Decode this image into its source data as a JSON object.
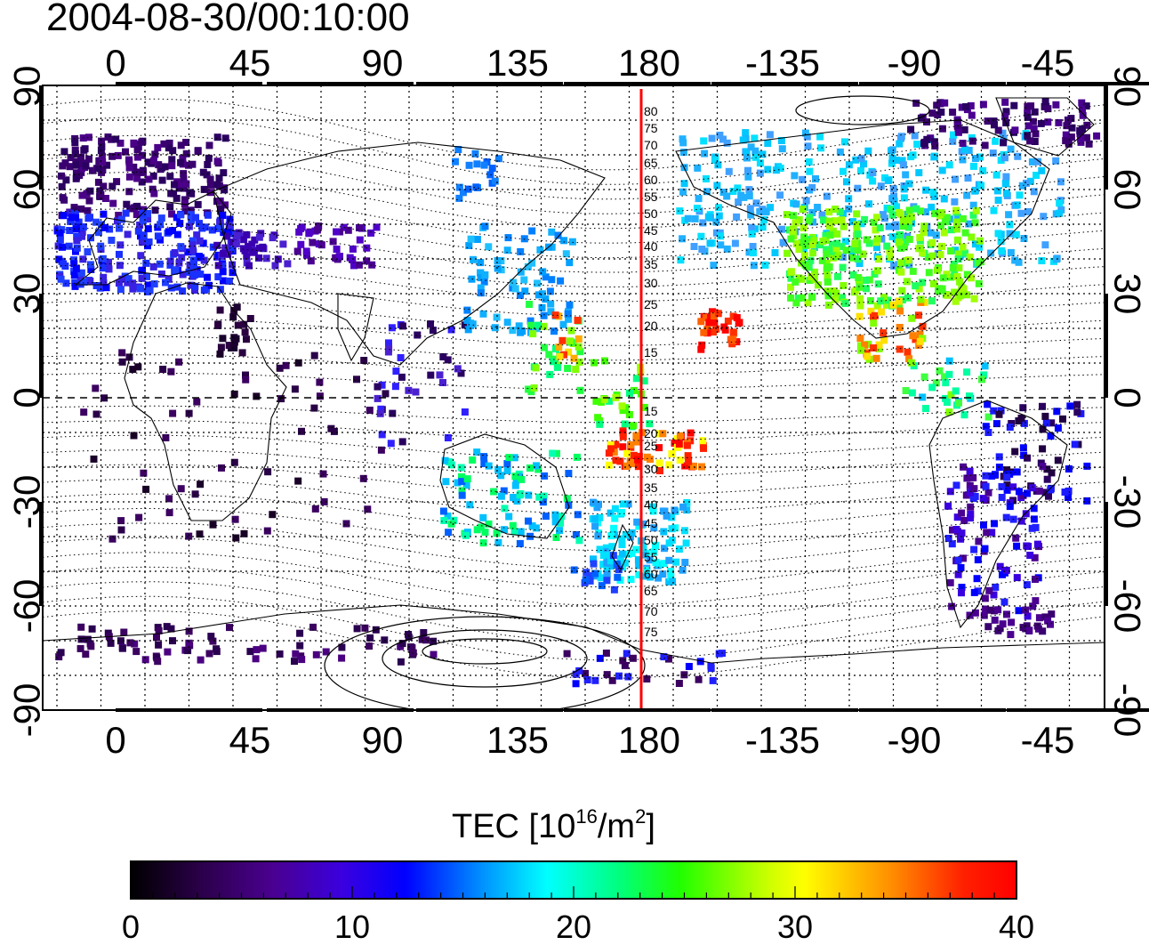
{
  "title": "2004-08-30/00:10:00",
  "lon_ticks": [
    "0",
    "45",
    "90",
    "135",
    "180",
    "-135",
    "-90",
    "-45"
  ],
  "lat_ticks": [
    "90",
    "60",
    "30",
    "0",
    "-30",
    "-60",
    "-90"
  ],
  "mlat_labels_north": [
    "80",
    "75",
    "70",
    "65",
    "60",
    "55",
    "50",
    "45",
    "40",
    "35",
    "30",
    "25",
    "20",
    "15"
  ],
  "mlat_labels_south": [
    "15",
    "20",
    "25",
    "30",
    "35",
    "40",
    "45",
    "50",
    "55",
    "60",
    "65",
    "70",
    "75"
  ],
  "colorbar": {
    "title_prefix": "TEC  [10",
    "title_exp1": "16",
    "title_mid": "/m",
    "title_exp2": "2",
    "title_suffix": "]",
    "labels": [
      "0",
      "10",
      "20",
      "30",
      "40"
    ],
    "min": 0,
    "max": 40
  },
  "meridian_marker_lon": "180",
  "colors": {
    "marker": "#ff0000",
    "scale": [
      "#000000",
      "#3a0062",
      "#5000c8",
      "#0000ff",
      "#0096ff",
      "#00ffff",
      "#00ff64",
      "#32ff00",
      "#ffff00",
      "#ff8c00",
      "#ff0000"
    ]
  }
}
